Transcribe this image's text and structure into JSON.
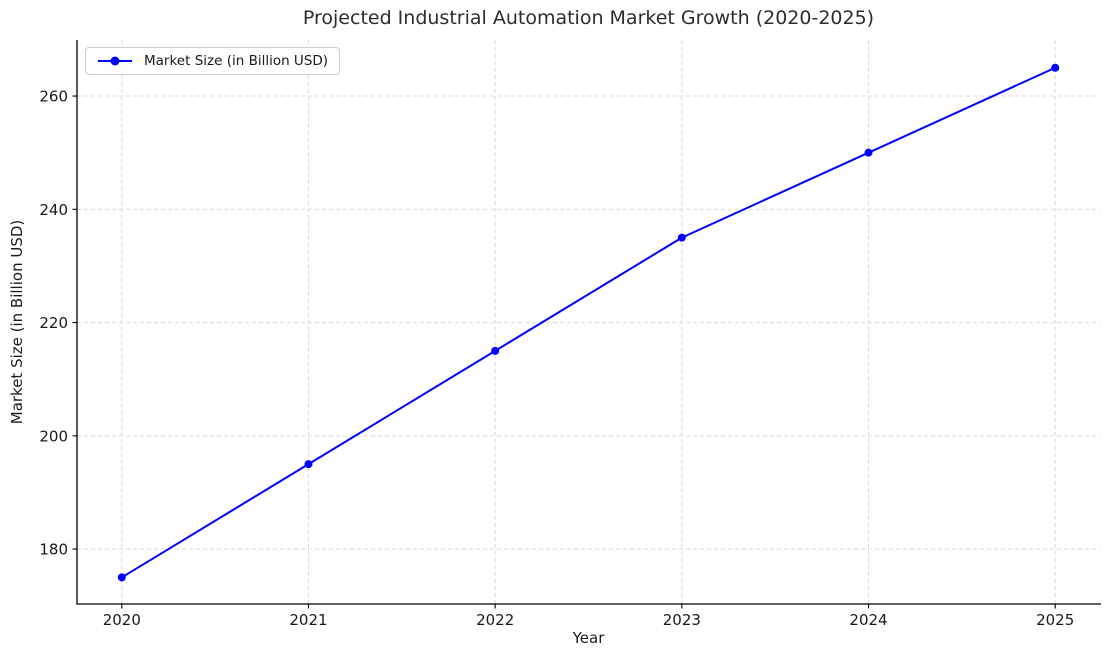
{
  "chart_data": {
    "type": "line",
    "title": "Projected Industrial Automation Market Growth (2020-2025)",
    "xlabel": "Year",
    "ylabel": "Market Size (in Billion USD)",
    "x": [
      2020,
      2021,
      2022,
      2023,
      2024,
      2025
    ],
    "series": [
      {
        "name": "Market Size (in Billion USD)",
        "values": [
          175,
          195,
          215,
          235,
          250,
          265
        ],
        "color": "#0000ff",
        "marker": "circle",
        "line_width": 2,
        "marker_radius": 4
      }
    ],
    "legend": {
      "label": "Market Size (in Billion USD)",
      "position": "upper-left"
    },
    "xticks": [
      "2020",
      "2021",
      "2022",
      "2023",
      "2024",
      "2025"
    ],
    "xtick_values": [
      2020,
      2021,
      2022,
      2023,
      2024,
      2025
    ],
    "yticks": [
      "180",
      "200",
      "220",
      "240",
      "260"
    ],
    "ytick_values": [
      180,
      200,
      220,
      240,
      260
    ],
    "xlim": [
      2019.76,
      2025.24
    ],
    "ylim": [
      170.3,
      269.9
    ],
    "grid": true,
    "grid_linestyle": "dashed",
    "spines_visible": [
      "left",
      "bottom"
    ],
    "colors": {
      "line": "#0000ff",
      "grid": "#d9d9d9",
      "spine": "#000000",
      "text": "#1a1a1a",
      "background": "#ffffff"
    }
  }
}
